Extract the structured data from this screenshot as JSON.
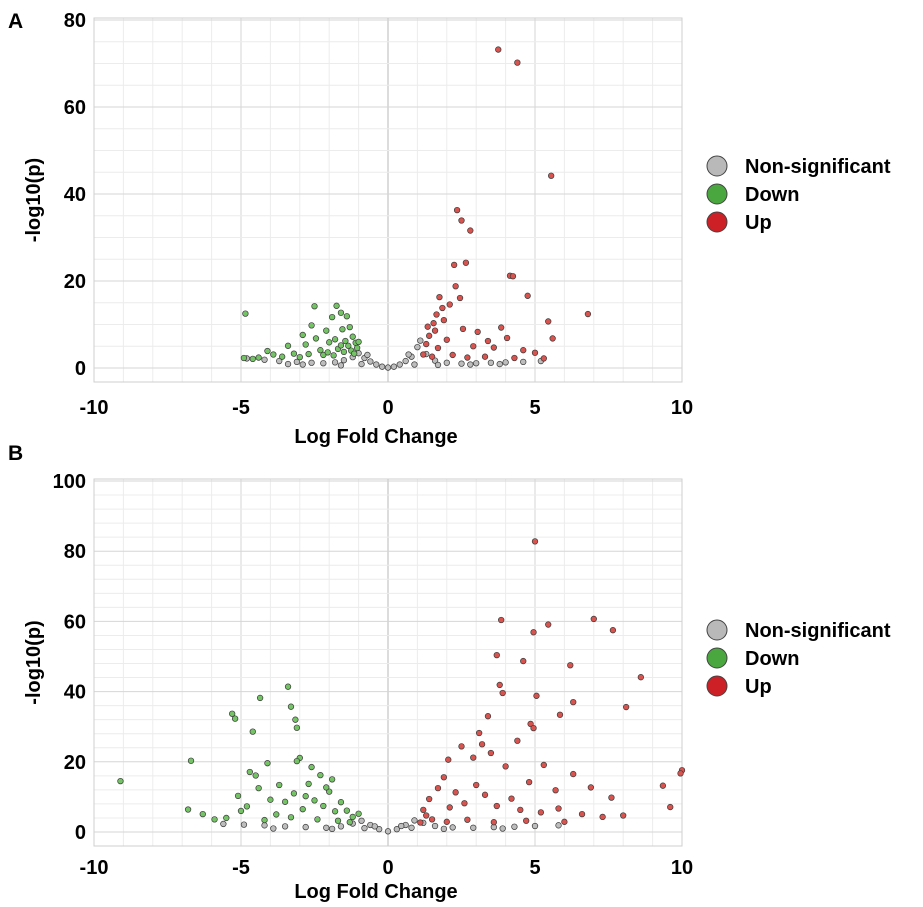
{
  "chart_data": [
    {
      "panel": "A",
      "type": "scatter",
      "title": "",
      "xlabel": "Log Fold Change",
      "ylabel": "-log10(p)",
      "xlim": [
        -10,
        10
      ],
      "ylim": [
        0,
        80
      ],
      "xticks": [
        -10,
        -5,
        0,
        5,
        10
      ],
      "yticks": [
        0,
        20,
        40,
        60,
        80
      ],
      "grid": true,
      "legend_placement": "right",
      "series": [
        {
          "name": "Non-significant",
          "color": "#bdbdbd",
          "note_generated": false,
          "points": [
            [
              -4.8,
              2.2
            ],
            [
              -4.2,
              1.9
            ],
            [
              -3.7,
              1.6
            ],
            [
              -3.1,
              1.4
            ],
            [
              -2.6,
              1.2
            ],
            [
              -2.2,
              1.1
            ],
            [
              -1.8,
              1.3
            ],
            [
              -1.5,
              1.8
            ],
            [
              -1.2,
              2.5
            ],
            [
              -1.0,
              3.4
            ],
            [
              -0.8,
              2.3
            ],
            [
              -0.6,
              1.5
            ],
            [
              -0.4,
              0.8
            ],
            [
              -0.2,
              0.3
            ],
            [
              0.0,
              0.1
            ],
            [
              0.2,
              0.3
            ],
            [
              0.4,
              0.8
            ],
            [
              0.6,
              1.6
            ],
            [
              0.8,
              2.6
            ],
            [
              1.0,
              4.8
            ],
            [
              1.1,
              6.3
            ],
            [
              1.3,
              3.2
            ],
            [
              1.6,
              1.7
            ],
            [
              2.0,
              1.2
            ],
            [
              2.5,
              1.0
            ],
            [
              3.0,
              1.1
            ],
            [
              3.5,
              1.2
            ],
            [
              4.0,
              1.3
            ],
            [
              4.6,
              1.4
            ],
            [
              5.2,
              1.6
            ],
            [
              -3.4,
              0.9
            ],
            [
              -2.9,
              0.8
            ],
            [
              -1.6,
              0.6
            ],
            [
              -0.9,
              0.9
            ],
            [
              0.9,
              0.8
            ],
            [
              1.7,
              0.7
            ],
            [
              2.8,
              0.8
            ],
            [
              3.8,
              0.9
            ],
            [
              -0.7,
              3.0
            ],
            [
              0.7,
              3.1
            ]
          ]
        },
        {
          "name": "Down",
          "color": "#74c365",
          "points": [
            [
              -4.85,
              12.5
            ],
            [
              -4.9,
              2.3
            ],
            [
              -4.6,
              2.1
            ],
            [
              -4.4,
              2.4
            ],
            [
              -4.1,
              3.9
            ],
            [
              -3.9,
              3.1
            ],
            [
              -3.6,
              2.6
            ],
            [
              -3.4,
              5.1
            ],
            [
              -3.2,
              3.3
            ],
            [
              -3.0,
              2.5
            ],
            [
              -2.9,
              7.6
            ],
            [
              -2.8,
              5.4
            ],
            [
              -2.7,
              3.2
            ],
            [
              -2.6,
              9.8
            ],
            [
              -2.5,
              14.2
            ],
            [
              -2.45,
              6.8
            ],
            [
              -2.3,
              4.1
            ],
            [
              -2.2,
              3.0
            ],
            [
              -2.1,
              8.6
            ],
            [
              -2.0,
              5.9
            ],
            [
              -1.9,
              11.7
            ],
            [
              -1.85,
              2.9
            ],
            [
              -1.8,
              6.6
            ],
            [
              -1.75,
              14.3
            ],
            [
              -1.7,
              4.4
            ],
            [
              -1.6,
              12.7
            ],
            [
              -1.55,
              8.9
            ],
            [
              -1.5,
              3.7
            ],
            [
              -1.45,
              6.2
            ],
            [
              -1.4,
              11.9
            ],
            [
              -1.35,
              5.1
            ],
            [
              -1.3,
              9.4
            ],
            [
              -1.25,
              4.0
            ],
            [
              -1.2,
              7.2
            ],
            [
              -1.15,
              3.3
            ],
            [
              -1.1,
              5.8
            ],
            [
              -1.05,
              4.6
            ],
            [
              -1.0,
              6.0
            ],
            [
              -1.6,
              5.2
            ],
            [
              -2.05,
              3.6
            ]
          ]
        },
        {
          "name": "Up",
          "color": "#d9534f",
          "points": [
            [
              3.75,
              73.2
            ],
            [
              4.4,
              70.2
            ],
            [
              5.55,
              44.2
            ],
            [
              2.35,
              36.3
            ],
            [
              2.5,
              33.9
            ],
            [
              2.8,
              31.6
            ],
            [
              2.25,
              23.7
            ],
            [
              2.65,
              24.2
            ],
            [
              4.15,
              21.2
            ],
            [
              4.25,
              21.1
            ],
            [
              2.3,
              18.8
            ],
            [
              1.75,
              16.3
            ],
            [
              2.45,
              16.1
            ],
            [
              4.75,
              16.6
            ],
            [
              2.1,
              14.6
            ],
            [
              1.85,
              13.8
            ],
            [
              6.8,
              12.4
            ],
            [
              5.45,
              10.7
            ],
            [
              3.85,
              9.3
            ],
            [
              1.55,
              10.3
            ],
            [
              1.6,
              8.6
            ],
            [
              1.9,
              11.0
            ],
            [
              2.55,
              9.0
            ],
            [
              3.05,
              8.3
            ],
            [
              3.4,
              6.2
            ],
            [
              4.05,
              6.9
            ],
            [
              5.6,
              6.8
            ],
            [
              1.3,
              5.5
            ],
            [
              1.4,
              7.4
            ],
            [
              1.7,
              4.6
            ],
            [
              2.0,
              6.5
            ],
            [
              2.9,
              5.0
            ],
            [
              3.6,
              4.7
            ],
            [
              4.6,
              4.1
            ],
            [
              5.0,
              3.5
            ],
            [
              1.2,
              3.1
            ],
            [
              1.5,
              2.6
            ],
            [
              2.2,
              3.0
            ],
            [
              2.7,
              2.4
            ],
            [
              3.3,
              2.6
            ],
            [
              4.3,
              2.3
            ],
            [
              5.3,
              2.2
            ],
            [
              1.35,
              9.5
            ],
            [
              1.65,
              12.3
            ]
          ]
        }
      ]
    },
    {
      "panel": "B",
      "type": "scatter",
      "title": "",
      "xlabel": "Log Fold Change",
      "ylabel": "-log10(p)",
      "xlim": [
        -10,
        10
      ],
      "ylim": [
        0,
        100
      ],
      "xticks": [
        -10,
        -5,
        0,
        5,
        10
      ],
      "yticks": [
        0,
        20,
        40,
        60,
        80,
        100
      ],
      "grid": true,
      "legend_placement": "right",
      "series": [
        {
          "name": "Non-significant",
          "color": "#bdbdbd",
          "points": [
            [
              -5.6,
              2.3
            ],
            [
              -4.9,
              2.1
            ],
            [
              -4.2,
              1.9
            ],
            [
              -3.5,
              1.6
            ],
            [
              -2.8,
              1.4
            ],
            [
              -2.1,
              1.2
            ],
            [
              -1.6,
              1.6
            ],
            [
              -1.2,
              2.4
            ],
            [
              -0.9,
              3.2
            ],
            [
              -0.6,
              2.0
            ],
            [
              -0.3,
              0.8
            ],
            [
              0.0,
              0.2
            ],
            [
              0.3,
              0.8
            ],
            [
              0.6,
              2.0
            ],
            [
              0.9,
              3.3
            ],
            [
              1.2,
              2.6
            ],
            [
              1.6,
              1.7
            ],
            [
              2.2,
              1.3
            ],
            [
              2.9,
              1.2
            ],
            [
              3.6,
              1.4
            ],
            [
              4.3,
              1.5
            ],
            [
              5.0,
              1.7
            ],
            [
              5.8,
              1.9
            ],
            [
              -3.9,
              1.0
            ],
            [
              -1.9,
              0.9
            ],
            [
              1.9,
              0.9
            ],
            [
              3.9,
              1.0
            ],
            [
              -0.8,
              1.1
            ],
            [
              0.8,
              1.2
            ],
            [
              -0.45,
              1.6
            ],
            [
              0.45,
              1.7
            ]
          ]
        },
        {
          "name": "Down",
          "color": "#74c365",
          "points": [
            [
              -9.1,
              14.5
            ],
            [
              -6.7,
              20.3
            ],
            [
              -6.8,
              6.4
            ],
            [
              -6.3,
              5.1
            ],
            [
              -5.9,
              3.6
            ],
            [
              -5.3,
              33.7
            ],
            [
              -5.2,
              32.3
            ],
            [
              -4.6,
              28.6
            ],
            [
              -4.35,
              38.2
            ],
            [
              -3.4,
              41.4
            ],
            [
              -3.3,
              35.7
            ],
            [
              -3.15,
              32.0
            ],
            [
              -3.1,
              29.7
            ],
            [
              -4.7,
              17.1
            ],
            [
              -4.5,
              16.1
            ],
            [
              -3.0,
              21.1
            ],
            [
              -3.1,
              20.2
            ],
            [
              -2.6,
              18.5
            ],
            [
              -2.3,
              16.2
            ],
            [
              -1.9,
              15.0
            ],
            [
              -5.1,
              10.3
            ],
            [
              -4.8,
              7.3
            ],
            [
              -4.4,
              12.5
            ],
            [
              -4.0,
              9.2
            ],
            [
              -3.7,
              13.4
            ],
            [
              -3.5,
              8.6
            ],
            [
              -3.2,
              11.0
            ],
            [
              -2.9,
              6.5
            ],
            [
              -2.7,
              13.7
            ],
            [
              -2.5,
              9.0
            ],
            [
              -2.2,
              7.4
            ],
            [
              -2.0,
              11.5
            ],
            [
              -1.8,
              5.9
            ],
            [
              -1.6,
              8.5
            ],
            [
              -1.4,
              6.1
            ],
            [
              -1.2,
              4.3
            ],
            [
              -1.0,
              5.2
            ],
            [
              -5.5,
              4.0
            ],
            [
              -4.2,
              3.4
            ],
            [
              -3.8,
              5.0
            ],
            [
              -3.3,
              4.2
            ],
            [
              -2.4,
              3.6
            ],
            [
              -1.7,
              3.2
            ],
            [
              -1.3,
              2.8
            ],
            [
              -5.0,
              6.0
            ],
            [
              -4.1,
              19.6
            ],
            [
              -2.8,
              10.2
            ],
            [
              -2.1,
              12.7
            ]
          ]
        },
        {
          "name": "Up",
          "color": "#d9534f",
          "points": [
            [
              5.0,
              82.8
            ],
            [
              3.85,
              60.4
            ],
            [
              7.0,
              60.7
            ],
            [
              5.45,
              59.1
            ],
            [
              7.65,
              57.5
            ],
            [
              4.95,
              56.9
            ],
            [
              3.7,
              50.4
            ],
            [
              6.2,
              47.5
            ],
            [
              4.6,
              48.7
            ],
            [
              8.6,
              44.1
            ],
            [
              3.8,
              41.9
            ],
            [
              3.9,
              39.6
            ],
            [
              6.3,
              37.0
            ],
            [
              5.05,
              38.8
            ],
            [
              8.1,
              35.6
            ],
            [
              5.85,
              33.4
            ],
            [
              3.4,
              33.0
            ],
            [
              4.85,
              30.8
            ],
            [
              3.1,
              28.2
            ],
            [
              4.95,
              29.6
            ],
            [
              3.2,
              25.0
            ],
            [
              4.4,
              26.0
            ],
            [
              2.5,
              24.4
            ],
            [
              2.05,
              20.6
            ],
            [
              2.9,
              21.2
            ],
            [
              3.5,
              22.5
            ],
            [
              4.0,
              18.7
            ],
            [
              5.3,
              19.1
            ],
            [
              9.35,
              13.2
            ],
            [
              10.0,
              17.6
            ],
            [
              9.95,
              16.7
            ],
            [
              9.6,
              7.1
            ],
            [
              7.6,
              9.8
            ],
            [
              8.0,
              4.7
            ],
            [
              6.3,
              16.5
            ],
            [
              6.9,
              12.7
            ],
            [
              5.7,
              11.9
            ],
            [
              4.8,
              14.2
            ],
            [
              1.2,
              6.3
            ],
            [
              1.4,
              9.4
            ],
            [
              1.7,
              12.5
            ],
            [
              1.9,
              15.6
            ],
            [
              2.3,
              11.3
            ],
            [
              2.6,
              8.2
            ],
            [
              3.0,
              13.4
            ],
            [
              3.3,
              10.6
            ],
            [
              3.7,
              7.4
            ],
            [
              4.2,
              9.5
            ],
            [
              4.5,
              6.3
            ],
            [
              5.2,
              5.6
            ],
            [
              5.8,
              6.7
            ],
            [
              6.6,
              5.1
            ],
            [
              7.3,
              4.3
            ],
            [
              1.1,
              2.7
            ],
            [
              1.5,
              3.6
            ],
            [
              2.0,
              2.9
            ],
            [
              2.7,
              3.5
            ],
            [
              3.6,
              2.8
            ],
            [
              4.7,
              3.2
            ],
            [
              6.0,
              2.9
            ],
            [
              1.3,
              4.7
            ],
            [
              2.1,
              7.0
            ]
          ]
        }
      ]
    }
  ],
  "panels": {
    "A": {
      "letter": "A"
    },
    "B": {
      "letter": "B"
    }
  }
}
